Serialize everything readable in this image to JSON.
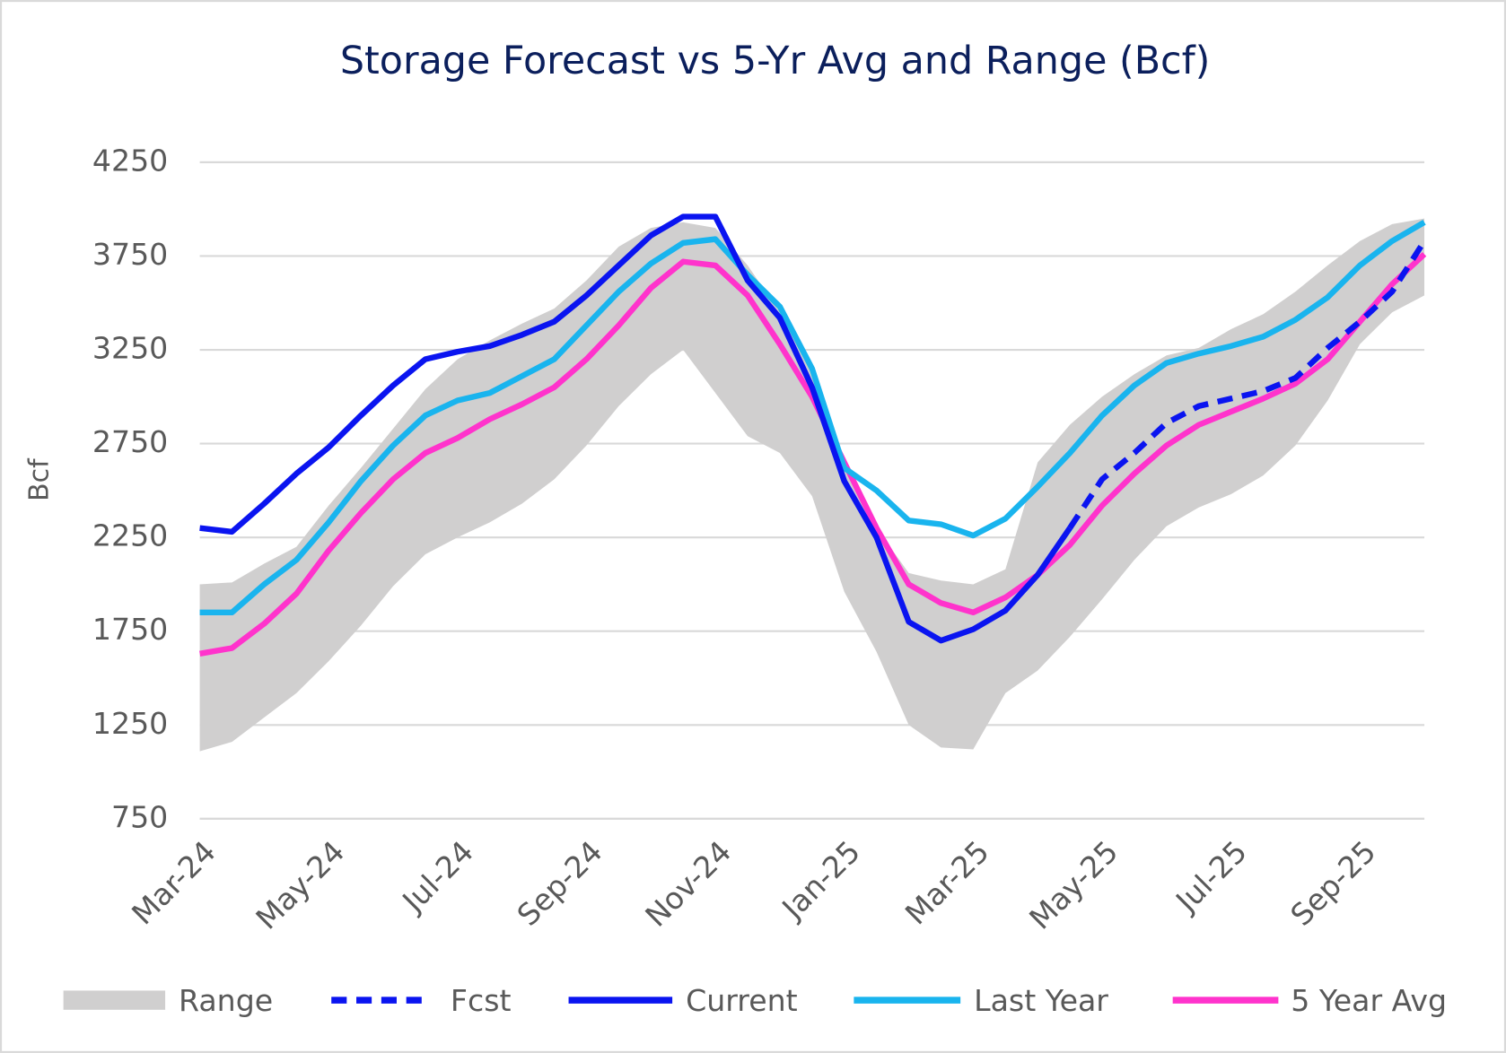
{
  "chart_data": {
    "type": "line",
    "title": "Storage Forecast vs 5-Yr Avg and Range (Bcf)",
    "y_label": "Bcf",
    "categories": [
      "Mar-24",
      null,
      null,
      null,
      "May-24",
      null,
      null,
      null,
      "Jul-24",
      null,
      null,
      null,
      "Sep-24",
      null,
      null,
      null,
      "Nov-24",
      null,
      null,
      null,
      "Jan-25",
      null,
      null,
      null,
      "Mar-25",
      null,
      null,
      null,
      "May-25",
      null,
      null,
      null,
      "Jul-25",
      null,
      null,
      null,
      "Sep-25",
      null,
      null
    ],
    "ylim": [
      750,
      4250
    ],
    "yticks": [
      750,
      1250,
      1750,
      2250,
      2750,
      3250,
      3750,
      4250
    ],
    "grid": true,
    "series": [
      {
        "name": "Range",
        "color": "#d0cfcf",
        "low": [
          1110,
          1160,
          1290,
          1420,
          1590,
          1780,
          1990,
          2160,
          2250,
          2330,
          2430,
          2560,
          2740,
          2950,
          3120,
          3250,
          3020,
          2790,
          2700,
          2470,
          1960,
          1640,
          1250,
          1130,
          1120,
          1420,
          1540,
          1720,
          1920,
          2130,
          2310,
          2410,
          2480,
          2580,
          2740,
          2980,
          3280,
          3450,
          3540
        ],
        "high": [
          2000,
          2010,
          2110,
          2200,
          2420,
          2620,
          2830,
          3040,
          3200,
          3300,
          3390,
          3470,
          3620,
          3800,
          3900,
          3930,
          3900,
          3700,
          3450,
          3150,
          2650,
          2300,
          2060,
          2020,
          2000,
          2080,
          2650,
          2850,
          3000,
          3120,
          3220,
          3260,
          3360,
          3440,
          3560,
          3700,
          3830,
          3920,
          3950
        ]
      },
      {
        "name": "Fcst",
        "color": "#0a14f0",
        "dashed": true,
        "values": [
          null,
          null,
          null,
          null,
          null,
          null,
          null,
          null,
          null,
          null,
          null,
          null,
          null,
          null,
          null,
          null,
          null,
          null,
          null,
          null,
          null,
          null,
          null,
          null,
          null,
          null,
          null,
          2300,
          2560,
          2700,
          2860,
          2950,
          2990,
          3030,
          3100,
          3260,
          3400,
          3560,
          3830
        ]
      },
      {
        "name": "Current",
        "color": "#0a14f0",
        "values": [
          2300,
          2280,
          2430,
          2590,
          2730,
          2900,
          3060,
          3200,
          3240,
          3270,
          3330,
          3400,
          3540,
          3700,
          3860,
          3960,
          3960,
          3620,
          3420,
          3050,
          2550,
          2250,
          1800,
          1700,
          1760,
          1860,
          2050,
          2300,
          null,
          null,
          null,
          null,
          null,
          null,
          null,
          null,
          null,
          null,
          null
        ]
      },
      {
        "name": "Last Year",
        "color": "#19b4ee",
        "values": [
          1850,
          1850,
          2000,
          2130,
          2330,
          2550,
          2740,
          2900,
          2980,
          3020,
          3110,
          3200,
          3380,
          3560,
          3710,
          3820,
          3840,
          3650,
          3480,
          3150,
          2620,
          2500,
          2340,
          2320,
          2260,
          2350,
          2520,
          2700,
          2900,
          3060,
          3180,
          3230,
          3270,
          3320,
          3410,
          3530,
          3700,
          3830,
          3930
        ]
      },
      {
        "name": "5 Year Avg",
        "color": "#ff33cc",
        "values": [
          1630,
          1660,
          1790,
          1950,
          2180,
          2380,
          2560,
          2700,
          2780,
          2880,
          2960,
          3050,
          3200,
          3380,
          3580,
          3720,
          3700,
          3540,
          3280,
          3000,
          2650,
          2300,
          2000,
          1900,
          1850,
          1930,
          2050,
          2210,
          2420,
          2590,
          2740,
          2850,
          2920,
          2990,
          3070,
          3200,
          3400,
          3600,
          3760
        ]
      }
    ]
  }
}
